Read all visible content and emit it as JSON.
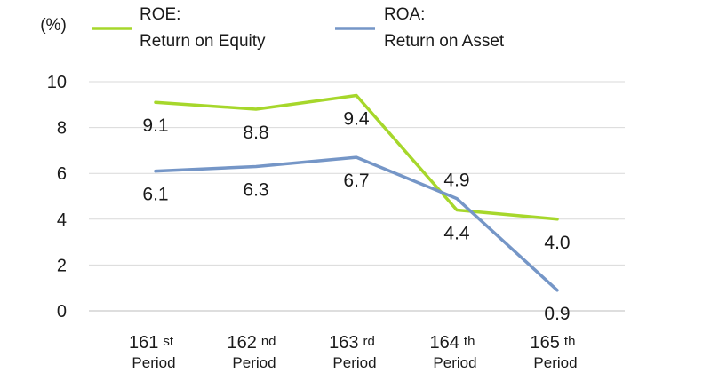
{
  "chart_data": {
    "type": "line",
    "unit_label": "(%)",
    "categories": [
      {
        "num": "161",
        "suffix": "st",
        "label": "Period"
      },
      {
        "num": "162",
        "suffix": "nd",
        "label": "Period"
      },
      {
        "num": "163",
        "suffix": "rd",
        "label": "Period"
      },
      {
        "num": "164",
        "suffix": "th",
        "label": "Period"
      },
      {
        "num": "165",
        "suffix": "th",
        "label": "Period"
      }
    ],
    "ylim": [
      0,
      10
    ],
    "yticks": [
      "0",
      "2",
      "4",
      "6",
      "8",
      "10"
    ],
    "grid": true,
    "legend_position": "top",
    "series": [
      {
        "name_line1": "ROE:",
        "name_line2": "Return on Equity",
        "color": "#a6d72b",
        "values": [
          9.1,
          8.8,
          9.4,
          4.4,
          4.0
        ],
        "labels": [
          "9.1",
          "8.8",
          "9.4",
          "4.4",
          "4.0"
        ],
        "label_side": [
          "below",
          "below",
          "below",
          "below",
          "below"
        ]
      },
      {
        "name_line1": "ROA:",
        "name_line2": "Return on Asset",
        "color": "#7596c7",
        "values": [
          6.1,
          6.3,
          6.7,
          4.9,
          0.9
        ],
        "labels": [
          "6.1",
          "6.3",
          "6.7",
          "4.9",
          "0.9"
        ],
        "label_side": [
          "below",
          "below",
          "below",
          "above",
          "below"
        ]
      }
    ]
  }
}
